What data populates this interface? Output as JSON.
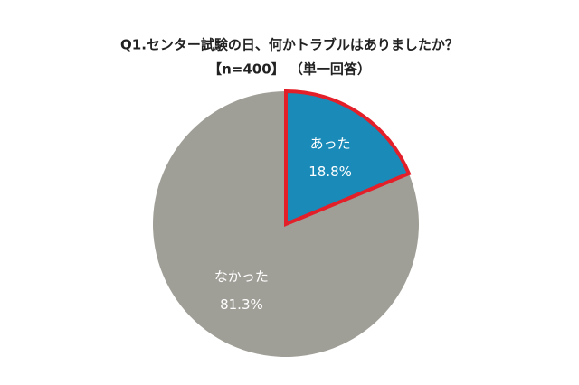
{
  "chart_data": {
    "type": "pie",
    "title": "Q1.センター試験の日、何かトラブルはありましたか？",
    "subtitle": "【n=400】 （単一回答）",
    "categories": [
      "あった",
      "なかった"
    ],
    "values": [
      18.8,
      81.3
    ],
    "value_labels": [
      "18.8%",
      "81.3%"
    ],
    "colors": [
      "#1a8ab8",
      "#a09f97"
    ],
    "highlight_index": 0,
    "highlight_edge_color": "#e3202a"
  }
}
